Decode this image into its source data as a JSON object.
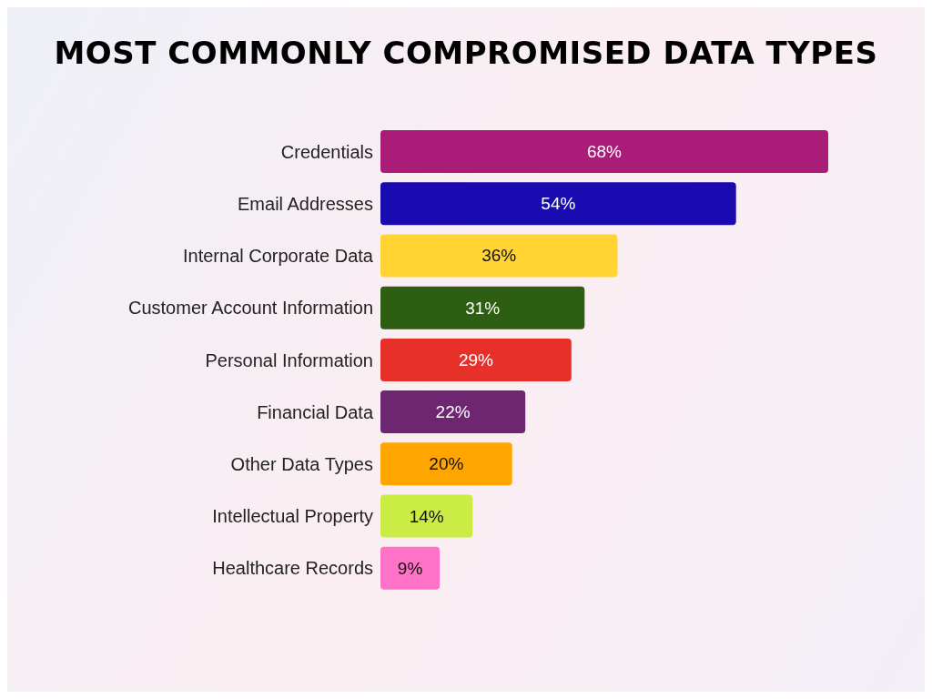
{
  "chart_data": {
    "type": "bar",
    "orientation": "horizontal",
    "title": "MOST COMMONLY COMPROMISED DATA TYPES",
    "categories": [
      "Credentials",
      "Email Addresses",
      "Internal Corporate Data",
      "Customer Account Information",
      "Personal Information",
      "Financial Data",
      "Other Data Types",
      "Intellectual Property",
      "Healthcare Records"
    ],
    "values": [
      68,
      54,
      36,
      31,
      29,
      22,
      20,
      14,
      9
    ],
    "value_labels": [
      "68%",
      "54%",
      "36%",
      "31%",
      "29%",
      "22%",
      "20%",
      "14%",
      "9%"
    ],
    "colors": [
      "#a91d78",
      "#1a0bb0",
      "#ffd433",
      "#2e5e12",
      "#e8302a",
      "#6e2670",
      "#ffa500",
      "#cbec45",
      "#ff72c8"
    ],
    "grid": false,
    "legend": false
  }
}
